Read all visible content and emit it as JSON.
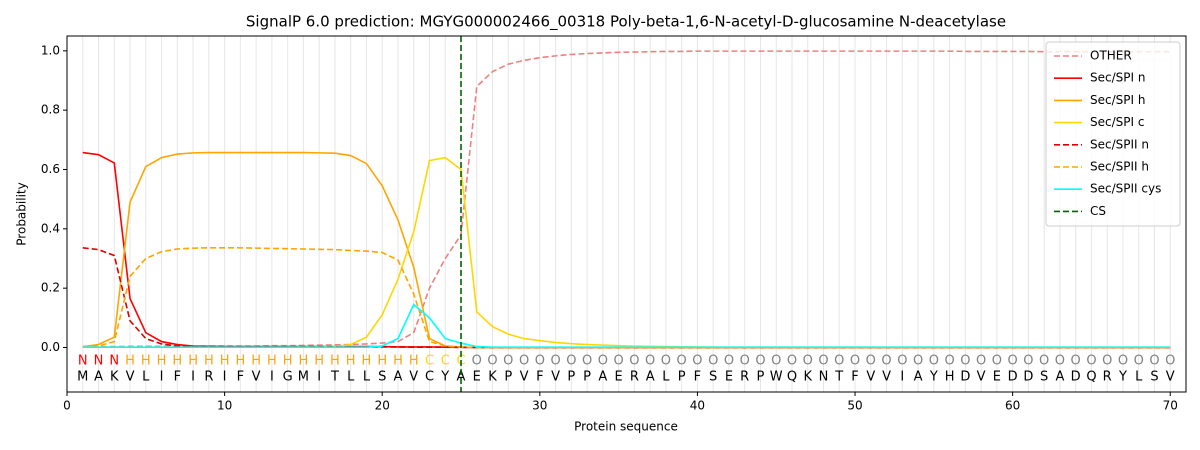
{
  "chart_data": {
    "type": "line",
    "title": "SignalP 6.0 prediction: MGYG000002466_00318 Poly-beta-1,6-N-acetyl-D-glucosamine N-deacetylase",
    "xlabel": "Protein sequence",
    "ylabel": "Probability",
    "xlim": [
      0,
      71
    ],
    "ylim": [
      -0.15,
      1.05
    ],
    "xticks": [
      0,
      10,
      20,
      30,
      40,
      50,
      60,
      70
    ],
    "yticks": [
      {
        "value": 0,
        "label": "0.0"
      },
      0.2,
      0.4,
      0.6,
      0.8,
      {
        "value": 1,
        "label": "1.0"
      }
    ],
    "xgrid": true,
    "legend": "upper right",
    "x": [
      1,
      2,
      3,
      4,
      5,
      6,
      7,
      8,
      9,
      10,
      11,
      12,
      13,
      14,
      15,
      16,
      17,
      18,
      19,
      20,
      21,
      22,
      23,
      24,
      25,
      26,
      27,
      28,
      29,
      30,
      31,
      32,
      33,
      34,
      35,
      36,
      37,
      38,
      39,
      40,
      41,
      42,
      43,
      44,
      45,
      46,
      47,
      48,
      49,
      50,
      51,
      52,
      53,
      54,
      55,
      56,
      57,
      58,
      59,
      60,
      61,
      62,
      63,
      64,
      65,
      66,
      67,
      68,
      69,
      70
    ],
    "sequence": [
      "M",
      "A",
      "K",
      "V",
      "L",
      "I",
      "F",
      "I",
      "R",
      "I",
      "F",
      "V",
      "I",
      "G",
      "M",
      "I",
      "T",
      "L",
      "L",
      "S",
      "A",
      "V",
      "C",
      "Y",
      "A",
      "E",
      "K",
      "P",
      "V",
      "F",
      "V",
      "P",
      "P",
      "A",
      "E",
      "R",
      "A",
      "L",
      "P",
      "F",
      "S",
      "E",
      "R",
      "P",
      "W",
      "Q",
      "K",
      "N",
      "T",
      "F",
      "V",
      "V",
      "I",
      "A",
      "Y",
      "H",
      "D",
      "V",
      "E",
      "D",
      "D",
      "S",
      "A",
      "D",
      "Q",
      "R",
      "Y",
      "L",
      "S",
      "V"
    ],
    "labels": [
      "N",
      "N",
      "N",
      "H",
      "H",
      "H",
      "H",
      "H",
      "H",
      "H",
      "H",
      "H",
      "H",
      "H",
      "H",
      "H",
      "H",
      "H",
      "H",
      "H",
      "H",
      "H",
      "C",
      "C",
      "C",
      "O",
      "O",
      "O",
      "O",
      "O",
      "O",
      "O",
      "O",
      "O",
      "O",
      "O",
      "O",
      "O",
      "O",
      "O",
      "O",
      "O",
      "O",
      "O",
      "O",
      "O",
      "O",
      "O",
      "O",
      "O",
      "O",
      "O",
      "O",
      "O",
      "O",
      "O",
      "O",
      "O",
      "O",
      "O",
      "O",
      "O",
      "O",
      "O",
      "O",
      "O",
      "O",
      "O",
      "O",
      "O"
    ],
    "label_colors": {
      "N": "#ff0000",
      "H": "#ffa500",
      "C": "#ffd700",
      "O": "#808080"
    },
    "series": [
      {
        "name": "OTHER",
        "color": "#f08080",
        "dashed": true,
        "values": [
          0.003,
          0.003,
          0.003,
          0.004,
          0.004,
          0.004,
          0.004,
          0.004,
          0.005,
          0.005,
          0.005,
          0.005,
          0.006,
          0.006,
          0.007,
          0.008,
          0.009,
          0.01,
          0.012,
          0.015,
          0.02,
          0.05,
          0.2,
          0.3,
          0.38,
          0.88,
          0.93,
          0.955,
          0.968,
          0.977,
          0.983,
          0.988,
          0.991,
          0.993,
          0.995,
          0.996,
          0.997,
          0.998,
          0.998,
          0.999,
          0.999,
          0.999,
          0.999,
          0.999,
          0.999,
          0.999,
          0.999,
          0.999,
          0.999,
          0.999,
          0.999,
          0.999,
          0.999,
          0.999,
          0.999,
          0.999,
          0.998,
          0.998,
          0.998,
          0.998,
          0.998,
          0.997,
          0.997,
          0.997,
          0.997,
          0.997,
          0.997,
          0.997,
          0.997,
          0.997
        ]
      },
      {
        "name": "Sec/SPI n",
        "color": "#ff0000",
        "dashed": false,
        "values": [
          0.657,
          0.65,
          0.622,
          0.165,
          0.05,
          0.02,
          0.01,
          0.005,
          0.004,
          0.003,
          0.003,
          0.003,
          0.003,
          0.003,
          0.003,
          0.003,
          0.003,
          0.003,
          0.003,
          0.003,
          0.002,
          0.002,
          0.002,
          0.001,
          0.001,
          0,
          0,
          0,
          0,
          0,
          0,
          0,
          0,
          0,
          0,
          0,
          0,
          0,
          0,
          0,
          0,
          0,
          0,
          0,
          0,
          0,
          0,
          0,
          0,
          0,
          0,
          0,
          0,
          0,
          0,
          0,
          0,
          0,
          0,
          0,
          0,
          0,
          0,
          0,
          0,
          0,
          0,
          0,
          0,
          0
        ]
      },
      {
        "name": "Sec/SPI h",
        "color": "#ffa500",
        "dashed": false,
        "values": [
          0.003,
          0.01,
          0.035,
          0.49,
          0.61,
          0.64,
          0.652,
          0.656,
          0.657,
          0.657,
          0.657,
          0.657,
          0.657,
          0.657,
          0.657,
          0.656,
          0.655,
          0.647,
          0.62,
          0.545,
          0.43,
          0.27,
          0.03,
          0.005,
          0.002,
          0,
          0,
          0,
          0,
          0,
          0,
          0,
          0,
          0,
          0,
          0,
          0,
          0,
          0,
          0,
          0,
          0,
          0,
          0,
          0,
          0,
          0,
          0,
          0,
          0,
          0,
          0,
          0,
          0,
          0,
          0,
          0,
          0,
          0,
          0,
          0,
          0,
          0,
          0,
          0,
          0,
          0,
          0,
          0,
          0
        ]
      },
      {
        "name": "Sec/SPI c",
        "color": "#ffd700",
        "dashed": false,
        "values": [
          0.001,
          0.001,
          0.001,
          0.001,
          0.001,
          0.001,
          0.001,
          0.001,
          0.001,
          0.001,
          0.001,
          0.001,
          0.001,
          0.001,
          0.002,
          0.002,
          0.003,
          0.01,
          0.035,
          0.11,
          0.23,
          0.39,
          0.63,
          0.64,
          0.6,
          0.12,
          0.07,
          0.045,
          0.03,
          0.023,
          0.017,
          0.013,
          0.01,
          0.008,
          0.006,
          0.005,
          0.004,
          0.003,
          0.002,
          0.002,
          0.001,
          0.001,
          0.001,
          0.001,
          0.001,
          0.001,
          0.001,
          0.001,
          0.001,
          0.001,
          0.001,
          0.001,
          0.001,
          0.001,
          0.001,
          0.001,
          0.001,
          0.001,
          0.001,
          0.001,
          0.001,
          0.001,
          0.001,
          0.001,
          0.001,
          0.001,
          0.001,
          0.001,
          0.001,
          0.001
        ]
      },
      {
        "name": "Sec/SPII n",
        "color": "#dd0000",
        "dashed": true,
        "values": [
          0.336,
          0.33,
          0.31,
          0.09,
          0.03,
          0.012,
          0.005,
          0.003,
          0.003,
          0.003,
          0.002,
          0.002,
          0.002,
          0.002,
          0.002,
          0.002,
          0.002,
          0.002,
          0.002,
          0.002,
          0.002,
          0.001,
          0.001,
          0.001,
          0,
          0,
          0,
          0,
          0,
          0,
          0,
          0,
          0,
          0,
          0,
          0,
          0,
          0,
          0,
          0,
          0,
          0,
          0,
          0,
          0,
          0,
          0,
          0,
          0,
          0,
          0,
          0,
          0,
          0,
          0,
          0,
          0,
          0,
          0,
          0,
          0,
          0,
          0,
          0,
          0,
          0,
          0,
          0,
          0,
          0
        ]
      },
      {
        "name": "Sec/SPII h",
        "color": "#ffa500",
        "dashed": true,
        "values": [
          0.002,
          0.005,
          0.02,
          0.24,
          0.3,
          0.323,
          0.332,
          0.335,
          0.336,
          0.336,
          0.336,
          0.335,
          0.334,
          0.333,
          0.332,
          0.331,
          0.33,
          0.327,
          0.325,
          0.32,
          0.295,
          0.18,
          0.02,
          0.005,
          0.001,
          0,
          0,
          0,
          0,
          0,
          0,
          0,
          0,
          0,
          0,
          0,
          0,
          0,
          0,
          0,
          0,
          0,
          0,
          0,
          0,
          0,
          0,
          0,
          0,
          0,
          0,
          0,
          0,
          0,
          0,
          0,
          0,
          0,
          0,
          0,
          0,
          0,
          0,
          0,
          0,
          0,
          0,
          0,
          0,
          0
        ]
      },
      {
        "name": "Sec/SPII cys",
        "color": "#00ffff",
        "dashed": false,
        "values": [
          0.001,
          0.001,
          0.001,
          0.001,
          0.001,
          0.001,
          0.001,
          0.001,
          0.001,
          0.001,
          0.001,
          0.001,
          0.001,
          0.001,
          0.001,
          0.001,
          0.001,
          0.001,
          0.001,
          0.005,
          0.03,
          0.145,
          0.1,
          0.03,
          0.015,
          0.003,
          0.001,
          0.001,
          0.001,
          0.001,
          0.001,
          0.001,
          0.001,
          0.001,
          0.001,
          0.001,
          0.001,
          0.001,
          0.001,
          0.001,
          0.001,
          0.001,
          0.001,
          0.001,
          0.001,
          0.001,
          0.001,
          0.001,
          0.001,
          0.001,
          0.001,
          0.001,
          0.001,
          0.001,
          0.001,
          0.001,
          0.001,
          0.001,
          0.001,
          0.001,
          0.001,
          0.001,
          0.001,
          0.001,
          0.001,
          0.001,
          0.001,
          0.001,
          0.001,
          0.001
        ]
      }
    ],
    "cleavage_site": {
      "name": "CS",
      "color": "#006400",
      "x": 25
    }
  }
}
